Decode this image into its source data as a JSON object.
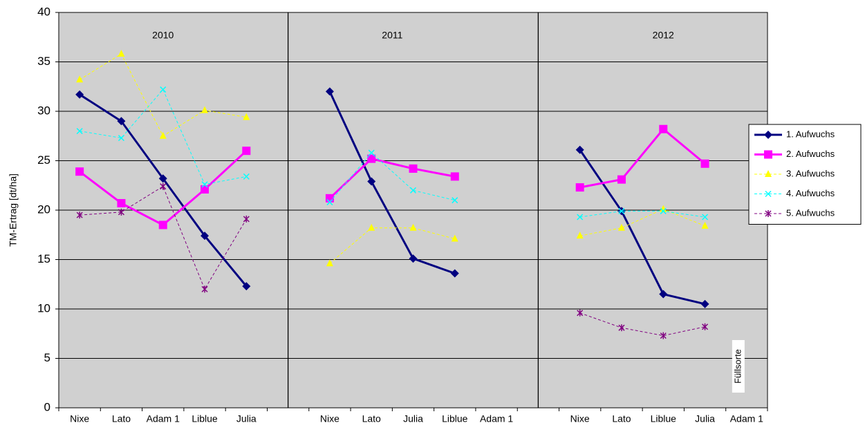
{
  "chart_data": {
    "type": "line",
    "y_label": "TM-Ertrag [dt/ha]",
    "categories": [
      "Nixe",
      "Lato",
      "Adam 1",
      "Liblue",
      "Julia",
      null,
      "Nixe",
      "Lato",
      "Julia",
      "Liblue",
      "Adam 1",
      null,
      "Nixe",
      "Lato",
      "Liblue",
      "Julia",
      "Adam 1"
    ],
    "series": [
      {
        "name": "1. Aufwuchs",
        "color": "#000080",
        "marker": "diamond",
        "dashed": false,
        "width": 3,
        "values": [
          31.7,
          29.0,
          23.2,
          17.4,
          12.3,
          null,
          32.0,
          22.9,
          15.1,
          13.6,
          null,
          null,
          26.1,
          19.9,
          11.5,
          10.5,
          null
        ]
      },
      {
        "name": "2. Aufwuchs",
        "color": "#ff00ff",
        "marker": "square",
        "dashed": false,
        "width": 3,
        "values": [
          23.9,
          20.7,
          18.5,
          22.1,
          26.0,
          null,
          21.2,
          25.2,
          24.2,
          23.4,
          null,
          null,
          22.3,
          23.1,
          28.2,
          24.7,
          null
        ]
      },
      {
        "name": "3. Aufwuchs",
        "color": "#ffff00",
        "marker": "triangle",
        "dashed": true,
        "width": 1,
        "values": [
          33.2,
          35.8,
          27.5,
          30.1,
          29.4,
          null,
          14.6,
          18.2,
          18.2,
          17.1,
          null,
          null,
          17.4,
          18.2,
          20.1,
          18.4,
          null
        ]
      },
      {
        "name": "4. Aufwuchs",
        "color": "#00ffff",
        "marker": "x",
        "dashed": true,
        "width": 1,
        "values": [
          28.0,
          27.3,
          32.2,
          22.6,
          23.4,
          null,
          20.8,
          25.8,
          22.0,
          21.0,
          null,
          null,
          19.3,
          19.9,
          19.9,
          19.3,
          null
        ]
      },
      {
        "name": "5. Aufwuchs",
        "color": "#800080",
        "marker": "star",
        "dashed": true,
        "width": 1,
        "values": [
          19.5,
          19.8,
          22.4,
          12.0,
          19.1,
          null,
          null,
          null,
          null,
          null,
          null,
          null,
          9.6,
          8.1,
          7.3,
          8.2,
          null
        ]
      }
    ],
    "group_labels": [
      "2010",
      "2011",
      "2012"
    ],
    "annotation": "Füllsorte",
    "ylim": [
      0,
      40
    ],
    "yticks": [
      0,
      5,
      10,
      15,
      20,
      25,
      30,
      35,
      40
    ],
    "grid": true,
    "plot_background": "#d0d0d0",
    "legend": "right"
  }
}
